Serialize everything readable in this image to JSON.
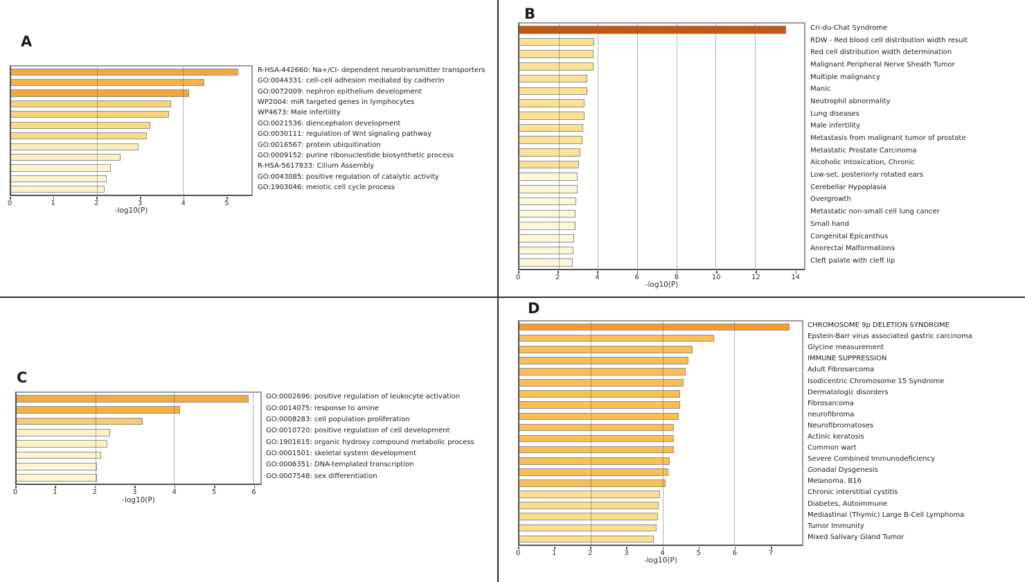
{
  "figure_xlabel": "-log10(P)",
  "chart_data": [
    {
      "panel": "A",
      "letter": "A",
      "type": "bar",
      "orientation": "horizontal",
      "xlabel": "-log10(P)",
      "xlim": [
        0,
        5.6
      ],
      "xticks": [
        0,
        1,
        2,
        3,
        4,
        5
      ],
      "gridlines": [
        2,
        4
      ],
      "grid": "on",
      "bars": [
        {
          "label": "R-HSA-442660: Na+/Cl- dependent neurotransmitter transporters",
          "value": 5.3,
          "color": "#F2A73C"
        },
        {
          "label": "GO:0044331: cell-cell adhesion mediated by cadherin",
          "value": 4.5,
          "color": "#F5B24C"
        },
        {
          "label": "GO:0072009: nephron epithelium development",
          "value": 4.15,
          "color": "#F2A73C"
        },
        {
          "label": "WP2004: miR targeted genes in lymphocytes",
          "value": 3.72,
          "color": "#F8D27A"
        },
        {
          "label": "WP4673: Male infertility",
          "value": 3.68,
          "color": "#F8D27A"
        },
        {
          "label": "GO:0021536: diencephalon development",
          "value": 3.25,
          "color": "#F9DB86"
        },
        {
          "label": "GO:0030111: regulation of Wnt signaling pathway",
          "value": 3.17,
          "color": "#F9DB86"
        },
        {
          "label": "GO:0016567: protein ubiquitination",
          "value": 2.97,
          "color": "#FBEFBB"
        },
        {
          "label": "GO:0009152: purine ribonucleotide biosynthetic process",
          "value": 2.55,
          "color": "#FBF1C3"
        },
        {
          "label": "R-HSA-5617833: Cilium Assembly",
          "value": 2.32,
          "color": "#FCF4CE"
        },
        {
          "label": "GO:0043085: positive regulation of catalytic activity",
          "value": 2.23,
          "color": "#FCF4CE"
        },
        {
          "label": "GO:1903046: meiotic cell cycle process",
          "value": 2.18,
          "color": "#FCF4CE"
        }
      ]
    },
    {
      "panel": "B",
      "letter": "B",
      "type": "bar",
      "orientation": "horizontal",
      "xlabel": "-log10(P)",
      "xlim": [
        0,
        14.5
      ],
      "xticks": [
        0,
        2,
        4,
        6,
        8,
        10,
        12,
        14
      ],
      "gridlines": [
        2,
        4,
        6,
        8,
        10,
        12
      ],
      "grid": "on",
      "bars": [
        {
          "label": "Cri-du-Chat Syndrome",
          "value": 13.6,
          "color": "#C9560F"
        },
        {
          "label": "RDW - Red blood cell distribution width result",
          "value": 3.8,
          "color": "#FAE193"
        },
        {
          "label": "Red cell distribution width determination",
          "value": 3.78,
          "color": "#FAE193"
        },
        {
          "label": "Malignant Peripheral Nerve Sheath Tumor",
          "value": 3.76,
          "color": "#FAE193"
        },
        {
          "label": "Multiple malignancy",
          "value": 3.45,
          "color": "#FAE193"
        },
        {
          "label": "Manic",
          "value": 3.45,
          "color": "#FAE193"
        },
        {
          "label": "Neutrophil abnormality",
          "value": 3.32,
          "color": "#FAE193"
        },
        {
          "label": "Lung diseases",
          "value": 3.32,
          "color": "#FAE193"
        },
        {
          "label": "Male infertility",
          "value": 3.25,
          "color": "#FAE193"
        },
        {
          "label": "Metastasis from malignant tumor of prostate",
          "value": 3.22,
          "color": "#FAE193"
        },
        {
          "label": "Metastatic Prostate Carcinoma",
          "value": 3.1,
          "color": "#FAE193"
        },
        {
          "label": "Alcoholic Intoxication, Chronic",
          "value": 3.02,
          "color": "#FAE193"
        },
        {
          "label": "Low-set, posteriorly rotated ears",
          "value": 2.95,
          "color": "#FCF7D8"
        },
        {
          "label": "Cerebellar Hypoplasia",
          "value": 2.95,
          "color": "#FCF7D8"
        },
        {
          "label": "Overgrowth",
          "value": 2.9,
          "color": "#FCF7D8"
        },
        {
          "label": "Metastatic non-small cell lung cancer",
          "value": 2.87,
          "color": "#FCF7D8"
        },
        {
          "label": "Small hand",
          "value": 2.85,
          "color": "#FCF7D8"
        },
        {
          "label": "Congenital Epicanthus",
          "value": 2.8,
          "color": "#FCF7D8"
        },
        {
          "label": "Anorectal Malformations",
          "value": 2.76,
          "color": "#FCF7D8"
        },
        {
          "label": "Cleft palate with cleft lip",
          "value": 2.7,
          "color": "#FCF7D8"
        }
      ]
    },
    {
      "panel": "C",
      "letter": "C",
      "type": "bar",
      "orientation": "horizontal",
      "xlabel": "-log10(P)",
      "xlim": [
        0,
        6.2
      ],
      "xticks": [
        0,
        1,
        2,
        3,
        4,
        5,
        6
      ],
      "gridlines": [
        2,
        4,
        6
      ],
      "grid": "on",
      "bars": [
        {
          "label": "GO:0002696: positive regulation of leukocyte activation",
          "value": 5.9,
          "color": "#F5AB40"
        },
        {
          "label": "GO:0014075: response to amine",
          "value": 4.15,
          "color": "#F5B048"
        },
        {
          "label": "GO:0008283: cell population proliferation",
          "value": 3.2,
          "color": "#F7CB6E"
        },
        {
          "label": "GO:0010720: positive regulation of cell development",
          "value": 2.37,
          "color": "#FBF2C6"
        },
        {
          "label": "GO:1901615: organic hydroxy compound metabolic process",
          "value": 2.3,
          "color": "#FBF2C6"
        },
        {
          "label": "GO:0001501: skeletal system development",
          "value": 2.15,
          "color": "#FCF4CC"
        },
        {
          "label": "GO:0006351: DNA-templated transcription",
          "value": 2.05,
          "color": "#FCF6D2"
        },
        {
          "label": "GO:0007548: sex differentiation",
          "value": 2.05,
          "color": "#FCF6D2"
        }
      ]
    },
    {
      "panel": "D",
      "letter": "D",
      "type": "bar",
      "orientation": "horizontal",
      "xlabel": "-log10(P)",
      "xlim": [
        0,
        7.9
      ],
      "xticks": [
        0,
        1,
        2,
        3,
        4,
        5,
        6,
        7
      ],
      "gridlines": [
        2,
        4,
        6
      ],
      "grid": "on",
      "bars": [
        {
          "label": "CHROMOSOME 9p DELETION SYNDROME",
          "value": 7.55,
          "color": "#F89A2D"
        },
        {
          "label": "Epstein-Barr virus associated gastric carcinoma",
          "value": 5.45,
          "color": "#F9BE55"
        },
        {
          "label": "Glycine measurement",
          "value": 4.85,
          "color": "#F9BE55"
        },
        {
          "label": "IMMUNE SUPPRESSION",
          "value": 4.72,
          "color": "#F9BE55"
        },
        {
          "label": "Adult Fibrosarcoma",
          "value": 4.65,
          "color": "#F9BE55"
        },
        {
          "label": "Isodicentric Chromosome 15 Syndrome",
          "value": 4.58,
          "color": "#F9BE55"
        },
        {
          "label": "Dermatologic disorders",
          "value": 4.5,
          "color": "#F9BE55"
        },
        {
          "label": "Fibrosarcoma",
          "value": 4.5,
          "color": "#F9BE55"
        },
        {
          "label": "neurofibroma",
          "value": 4.45,
          "color": "#F9BE55"
        },
        {
          "label": "Neurofibromatoses",
          "value": 4.32,
          "color": "#F9BE55"
        },
        {
          "label": "Actinic keratosis",
          "value": 4.32,
          "color": "#F9BE55"
        },
        {
          "label": "Common wart",
          "value": 4.32,
          "color": "#F9BE55"
        },
        {
          "label": "Severe Combined Immunodeficiency",
          "value": 4.2,
          "color": "#F9BE55"
        },
        {
          "label": "Gonadal Dysgenesis",
          "value": 4.17,
          "color": "#F9BE55"
        },
        {
          "label": "Melanoma, B16",
          "value": 4.08,
          "color": "#F9BE55"
        },
        {
          "label": "Chronic interstitial cystitis",
          "value": 3.93,
          "color": "#FBDF8C"
        },
        {
          "label": "Diabetes, Autoimmune",
          "value": 3.9,
          "color": "#FBDF8C"
        },
        {
          "label": "Mediastinal (Thymic) Large B-Cell Lymphoma",
          "value": 3.87,
          "color": "#FBDF8C"
        },
        {
          "label": "Tumor Immunity",
          "value": 3.83,
          "color": "#FBDF8C"
        },
        {
          "label": "Mixed Salivary Gland Tumor",
          "value": 3.76,
          "color": "#FBDF8C"
        }
      ]
    }
  ]
}
